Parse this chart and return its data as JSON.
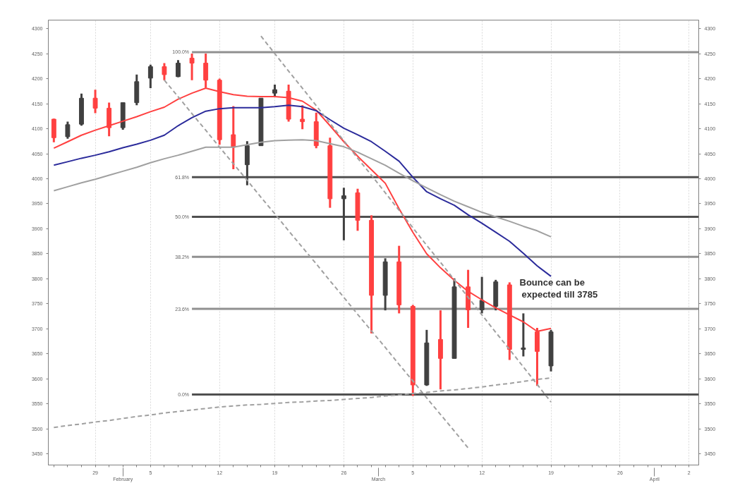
{
  "chart_data": {
    "type": "candlestick",
    "categories": [
      null,
      null,
      null,
      "29",
      null,
      null,
      null,
      "5",
      null,
      null,
      null,
      null,
      "12",
      null,
      null,
      null,
      "19",
      null,
      null,
      null,
      null,
      "26",
      null,
      null,
      null,
      null,
      "5",
      null,
      null,
      null,
      null,
      "12",
      null,
      null,
      null,
      null,
      "19",
      null,
      null,
      null,
      null,
      "26",
      null,
      null,
      null,
      null,
      "2"
    ],
    "ohlc": [
      [
        4119,
        4120,
        4073,
        4082
      ],
      [
        4084,
        4114,
        4080,
        4108
      ],
      [
        4109,
        4170,
        4106,
        4161
      ],
      [
        4161,
        4178,
        4131,
        4141
      ],
      [
        4141,
        4152,
        4085,
        4102
      ],
      [
        4102,
        4152,
        4098,
        4152
      ],
      [
        4152,
        4208,
        4147,
        4194
      ],
      [
        4201,
        4228,
        4181,
        4224
      ],
      [
        4224,
        4231,
        4197,
        4208
      ],
      [
        4204,
        4237,
        4203,
        4231
      ],
      [
        4241,
        4250,
        4197,
        4231
      ],
      [
        4231,
        4250,
        4182,
        4197
      ],
      [
        4197,
        4200,
        4068,
        4078
      ],
      [
        4088,
        4145,
        4019,
        4063
      ],
      [
        4028,
        4075,
        3987,
        4066
      ],
      [
        4066,
        4161,
        4066,
        4161
      ],
      [
        4171,
        4188,
        4164,
        4178
      ],
      [
        4175,
        4188,
        4114,
        4119
      ],
      [
        4119,
        4147,
        4099,
        4114
      ],
      [
        4114,
        4132,
        4061,
        4066
      ],
      [
        4066,
        4082,
        3942,
        3960
      ],
      [
        3960,
        3982,
        3877,
        3966
      ],
      [
        3972,
        3980,
        3896,
        3917
      ],
      [
        3917,
        3927,
        3691,
        3767
      ],
      [
        3767,
        3841,
        3737,
        3834
      ],
      [
        3834,
        3866,
        3731,
        3748
      ],
      [
        3745,
        3748,
        3566,
        3588
      ],
      [
        3588,
        3698,
        3586,
        3672
      ],
      [
        3679,
        3737,
        3579,
        3641
      ],
      [
        3641,
        3801,
        3641,
        3784
      ],
      [
        3784,
        3818,
        3702,
        3738
      ],
      [
        3738,
        3804,
        3731,
        3757
      ],
      [
        3745,
        3798,
        3737,
        3794
      ],
      [
        3788,
        3793,
        3638,
        3659
      ],
      [
        3659,
        3731,
        3645,
        3662
      ],
      [
        3694,
        3702,
        3586,
        3655
      ],
      [
        3626,
        3698,
        3615,
        3694
      ],
      null,
      null,
      null,
      null,
      null,
      null,
      null,
      null,
      null,
      null
    ],
    "colors": [
      "#ff4040",
      "#404040",
      "#404040",
      "#ff4040",
      "#ff4040",
      "#404040",
      "#404040",
      "#404040",
      "#ff4040",
      "#404040",
      "#ff4040",
      "#ff4040",
      "#ff4040",
      "#ff4040",
      "#404040",
      "#404040",
      "#404040",
      "#ff4040",
      "#ff4040",
      "#ff4040",
      "#ff4040",
      "#404040",
      "#ff4040",
      "#ff4040",
      "#404040",
      "#ff4040",
      "#ff4040",
      "#404040",
      "#ff4040",
      "#404040",
      "#ff4040",
      "#404040",
      "#404040",
      "#ff4040",
      "#404040",
      "#ff4040",
      "#404040",
      null,
      null,
      null,
      null,
      null,
      null,
      null,
      null,
      null,
      null
    ],
    "series": [
      {
        "type": "line",
        "color": "#ff4040",
        "line_style": "solid",
        "values": [
          4061,
          4074,
          4087,
          4097,
          4106,
          4115,
          4124,
          4134,
          4143,
          4159,
          4171,
          4181,
          4174,
          4168,
          4165,
          4164,
          4164,
          4162,
          4155,
          4137,
          4106,
          4074,
          4045,
          4018,
          3991,
          3940,
          3893,
          3850,
          3822,
          3797,
          3775,
          3758,
          3742,
          3728,
          3714,
          3695,
          3701,
          null,
          null,
          null,
          null,
          null,
          null,
          null,
          null,
          null,
          null
        ]
      },
      {
        "type": "line",
        "color": "#2b2b9b",
        "line_style": "solid",
        "values": [
          4027,
          4034,
          4041,
          4047,
          4054,
          4062,
          4069,
          4077,
          4087,
          4106,
          4122,
          4135,
          4140,
          4142,
          4142,
          4142,
          4144,
          4147,
          4144,
          4136,
          4118,
          4101,
          4088,
          4074,
          4055,
          4035,
          4003,
          3974,
          3960,
          3947,
          3928,
          3911,
          3893,
          3875,
          3851,
          3826,
          3805,
          null,
          null,
          null,
          null,
          null,
          null,
          null,
          null,
          null,
          null
        ]
      },
      {
        "type": "line",
        "color": "#a0a0a0",
        "line_style": "solid",
        "values": [
          3976,
          3984,
          3992,
          3999,
          4007,
          4015,
          4023,
          4032,
          4040,
          4047,
          4055,
          4063,
          4063,
          4063,
          4068,
          4073,
          4076,
          4077,
          4078,
          4076,
          4070,
          4064,
          4053,
          4040,
          4027,
          4011,
          3996,
          3982,
          3968,
          3955,
          3944,
          3933,
          3924,
          3915,
          3905,
          3896,
          3884,
          null,
          null,
          null,
          null,
          null,
          null,
          null,
          null,
          null,
          null
        ]
      },
      {
        "type": "line",
        "color": "#a0a0a0",
        "line_style": "dashed",
        "values": [
          null,
          null,
          null,
          null,
          null,
          null,
          null,
          null,
          4197,
          4164,
          4130,
          4097,
          4063,
          4030,
          3997,
          3963,
          3930,
          3896,
          3863,
          3830,
          3796,
          3763,
          3729,
          3696,
          3663,
          3629,
          3596,
          3562,
          3529,
          3496,
          3462,
          null,
          null,
          null,
          null,
          null,
          null,
          null,
          null,
          null,
          null,
          null,
          null,
          null,
          null,
          null,
          null
        ]
      },
      {
        "type": "line",
        "color": "#a0a0a0",
        "line_style": "dashed",
        "values": [
          null,
          null,
          null,
          null,
          null,
          null,
          null,
          null,
          null,
          null,
          null,
          null,
          null,
          null,
          null,
          4285,
          4250,
          4215,
          4181,
          4146,
          4111,
          4076,
          4041,
          4007,
          3972,
          3937,
          3902,
          3867,
          3833,
          3798,
          3763,
          3728,
          3693,
          3659,
          3624,
          3589,
          3554,
          null,
          null,
          null,
          null,
          null,
          null,
          null,
          null,
          null,
          null
        ]
      },
      {
        "type": "line",
        "color": "#a0a0a0",
        "line_style": "dashed",
        "values": [
          3503,
          3507,
          3510,
          3514,
          3517,
          3521,
          3525,
          3528,
          3532,
          3535,
          3538,
          3541,
          3544,
          3546,
          3548,
          3549,
          3551,
          3553,
          3554,
          3556,
          3557,
          3559,
          3561,
          3563,
          3566,
          3568,
          3571,
          3573,
          3576,
          3578,
          3581,
          3584,
          3588,
          3591,
          3595,
          3599,
          3602,
          null,
          null,
          null,
          null,
          null,
          null,
          null,
          null,
          null,
          null
        ]
      }
    ],
    "ref_lines": [
      {
        "axis": "y",
        "value": 4253,
        "color": "#909090"
      },
      {
        "axis": "y",
        "value": 4003,
        "color": "#505050"
      },
      {
        "axis": "y",
        "value": 3924,
        "color": "#505050"
      },
      {
        "axis": "y",
        "value": 3844,
        "color": "#909090"
      },
      {
        "axis": "y",
        "value": 3740,
        "color": "#909090"
      },
      {
        "axis": "y",
        "value": 3569,
        "color": "#505050"
      }
    ],
    "annotations": [
      "100.0%",
      "61.8%",
      "50.0%",
      "38.2%",
      "23.6%",
      "0.0%",
      "Bounce can be\nexpected till 3785",
      "February",
      "March",
      "April"
    ],
    "ylim": [
      3428,
      4317
    ],
    "y2lim": [
      3428,
      4317
    ],
    "yticks": [
      3450,
      3500,
      3550,
      3600,
      3650,
      3700,
      3750,
      3800,
      3850,
      3900,
      3950,
      4000,
      4050,
      4100,
      4150,
      4200,
      4250,
      4300
    ],
    "y2ticks": [
      3450,
      3500,
      3550,
      3600,
      3650,
      3700,
      3750,
      3800,
      3850,
      3900,
      3950,
      4000,
      4050,
      4100,
      4150,
      4200,
      4250,
      4300
    ],
    "grid": "x"
  }
}
